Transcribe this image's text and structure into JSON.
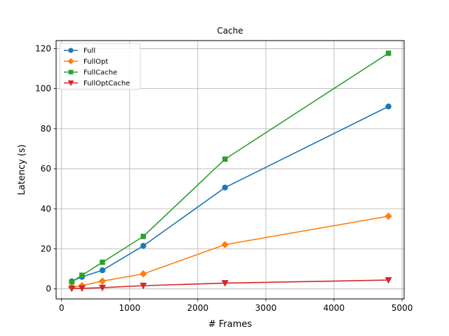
{
  "chart_data": {
    "type": "line",
    "title": "Cache",
    "xlabel": "# Frames",
    "ylabel": "Latency (s)",
    "x": [
      150,
      300,
      600,
      1200,
      2400,
      4800
    ],
    "xlim": [
      -80,
      5030
    ],
    "ylim": [
      -5,
      124
    ],
    "xticks": [
      0,
      1000,
      2000,
      3000,
      4000,
      5000
    ],
    "yticks": [
      0,
      20,
      40,
      60,
      80,
      100,
      120
    ],
    "grid": true,
    "legend_position": "upper-left",
    "series": [
      {
        "name": "Full",
        "color": "#1f77b4",
        "marker": "circle",
        "values": [
          3.8,
          6.0,
          9.3,
          21.5,
          50.6,
          91.1
        ]
      },
      {
        "name": "FullOpt",
        "color": "#ff7f0e",
        "marker": "diamond",
        "values": [
          0.8,
          1.6,
          3.9,
          7.5,
          22.1,
          36.3
        ]
      },
      {
        "name": "FullCache",
        "color": "#2ca02c",
        "marker": "square",
        "values": [
          3.5,
          6.8,
          13.3,
          26.2,
          64.8,
          117.7
        ]
      },
      {
        "name": "FullOptCache",
        "color": "#d62728",
        "marker": "triangle-down",
        "values": [
          0.2,
          0.3,
          0.6,
          1.6,
          2.9,
          4.4
        ]
      }
    ]
  }
}
